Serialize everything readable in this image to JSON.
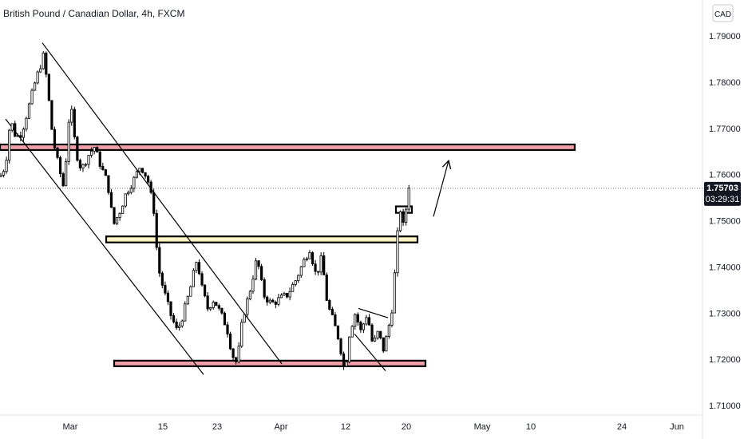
{
  "header": {
    "title": "British Pound / Canadian Dollar, 4h, FXCM",
    "currency_button": "CAD"
  },
  "price_tag": {
    "price": "1.75703",
    "countdown": "03:29:31"
  },
  "colors": {
    "background": "#ffffff",
    "candle": "#000000",
    "support_resistance_zone_fill": "#f0a0a8",
    "support_resistance_zone_edge": "#000000",
    "pivot_zone_fill": "#fff4c8",
    "price_tag_bg": "#131722",
    "price_tag_text": "#ffffff",
    "axis_text": "#131722",
    "grid_line": "#e0e3eb"
  },
  "chart_data": {
    "type": "candlestick",
    "title": "British Pound / Canadian Dollar, 4h, FXCM",
    "y_axis": {
      "unit": "CAD",
      "ylim": [
        1.7052,
        1.7966
      ],
      "ticks": [
        "1.79000",
        "1.78000",
        "1.77000",
        "1.76000",
        "1.75000",
        "1.74000",
        "1.73000",
        "1.72000",
        "1.71000"
      ]
    },
    "x_axis": {
      "ticks": [
        "Mar",
        "15",
        "23",
        "Apr",
        "12",
        "20",
        "May",
        "10",
        "24",
        "Jun"
      ]
    },
    "grid": false,
    "last_price": 1.75703,
    "price_path": [
      [
        0,
        1.7595
      ],
      [
        7,
        1.762
      ],
      [
        13,
        1.772
      ],
      [
        20,
        1.768
      ],
      [
        27,
        1.769
      ],
      [
        35,
        1.774
      ],
      [
        44,
        1.78
      ],
      [
        55,
        1.786
      ],
      [
        60,
        1.778
      ],
      [
        66,
        1.768
      ],
      [
        73,
        1.762
      ],
      [
        80,
        1.757
      ],
      [
        88,
        1.776
      ],
      [
        95,
        1.765
      ],
      [
        102,
        1.761
      ],
      [
        110,
        1.764
      ],
      [
        118,
        1.766
      ],
      [
        126,
        1.762
      ],
      [
        135,
        1.758
      ],
      [
        142,
        1.749
      ],
      [
        150,
        1.752
      ],
      [
        158,
        1.756
      ],
      [
        168,
        1.759
      ],
      [
        176,
        1.762
      ],
      [
        185,
        1.759
      ],
      [
        193,
        1.752
      ],
      [
        198,
        1.74
      ],
      [
        205,
        1.735
      ],
      [
        213,
        1.73
      ],
      [
        222,
        1.726
      ],
      [
        230,
        1.73
      ],
      [
        238,
        1.735
      ],
      [
        247,
        1.742
      ],
      [
        252,
        1.736
      ],
      [
        260,
        1.731
      ],
      [
        268,
        1.733
      ],
      [
        276,
        1.73
      ],
      [
        284,
        1.727
      ],
      [
        291,
        1.721
      ],
      [
        297,
        1.719
      ],
      [
        304,
        1.729
      ],
      [
        312,
        1.734
      ],
      [
        322,
        1.742
      ],
      [
        330,
        1.734
      ],
      [
        340,
        1.732
      ],
      [
        350,
        1.733
      ],
      [
        360,
        1.734
      ],
      [
        370,
        1.737
      ],
      [
        380,
        1.741
      ],
      [
        388,
        1.744
      ],
      [
        396,
        1.738
      ],
      [
        403,
        1.742
      ],
      [
        410,
        1.732
      ],
      [
        418,
        1.728
      ],
      [
        425,
        1.724
      ],
      [
        432,
        1.717
      ],
      [
        438,
        1.726
      ],
      [
        445,
        1.73
      ],
      [
        452,
        1.726
      ],
      [
        460,
        1.73
      ],
      [
        467,
        1.723
      ],
      [
        474,
        1.726
      ],
      [
        480,
        1.722
      ],
      [
        486,
        1.726
      ],
      [
        492,
        1.732
      ],
      [
        497,
        1.745
      ],
      [
        501,
        1.753
      ],
      [
        506,
        1.748
      ],
      [
        510,
        1.755
      ],
      [
        513,
        1.757
      ]
    ],
    "annotations": [
      {
        "type": "zone",
        "name": "resistance-zone",
        "x_range": [
          0,
          720
        ],
        "price_range": [
          1.7653,
          1.7665
        ]
      },
      {
        "type": "zone",
        "name": "pivot-zone",
        "x_range": [
          133,
          523
        ],
        "price_range": [
          1.7453,
          1.7466
        ]
      },
      {
        "type": "zone",
        "name": "support-zone",
        "x_range": [
          143,
          533
        ],
        "price_range": [
          1.7185,
          1.7197
        ]
      },
      {
        "type": "zone",
        "name": "flag-box",
        "x_range": [
          496,
          516
        ],
        "price_range": [
          1.7517,
          1.7531
        ]
      },
      {
        "type": "line",
        "name": "channel-upper",
        "points": [
          [
            53,
            1.7885
          ],
          [
            353,
            1.719
          ]
        ]
      },
      {
        "type": "line",
        "name": "channel-lower",
        "points": [
          [
            7,
            1.772
          ],
          [
            255,
            1.7167
          ]
        ]
      },
      {
        "type": "line",
        "name": "wedge-upper",
        "points": [
          [
            449,
            1.731
          ],
          [
            486,
            1.729
          ]
        ]
      },
      {
        "type": "line",
        "name": "wedge-lower",
        "points": [
          [
            444,
            1.7255
          ],
          [
            483,
            1.7175
          ]
        ]
      },
      {
        "type": "arrow",
        "name": "upside-arrow",
        "points": [
          [
            543,
            1.7509
          ],
          [
            562,
            1.763
          ]
        ]
      }
    ]
  }
}
